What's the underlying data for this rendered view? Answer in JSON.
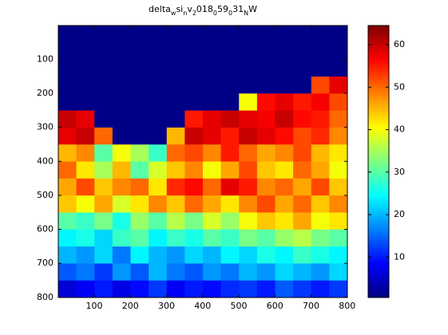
{
  "chart_data": {
    "type": "heatmap",
    "title_parts": [
      {
        "text": "delta"
      },
      {
        "text": "w",
        "sub": true
      },
      {
        "text": "si"
      },
      {
        "text": "n",
        "sub": true
      },
      {
        "text": "v"
      },
      {
        "text": "2",
        "sub": true
      },
      {
        "text": "018"
      },
      {
        "text": "0",
        "sub": true
      },
      {
        "text": "59"
      },
      {
        "text": "0",
        "sub": true
      },
      {
        "text": "31"
      },
      {
        "text": "N",
        "sub": true
      },
      {
        "text": "W"
      }
    ],
    "colormap": "jet",
    "y_reversed": true,
    "xlim": [
      0.5,
      800.5
    ],
    "ylim": [
      0.5,
      800.5
    ],
    "xticks": [
      100,
      200,
      300,
      400,
      500,
      600,
      700,
      800
    ],
    "yticks": [
      100,
      200,
      300,
      400,
      500,
      600,
      700,
      800
    ],
    "clim": [
      0.5,
      64.5
    ],
    "cticks": [
      10,
      20,
      30,
      40,
      50,
      60
    ],
    "values": [
      [
        1,
        1,
        1,
        1,
        1,
        1,
        1,
        1,
        1,
        1,
        1,
        1,
        1,
        1,
        1,
        1
      ],
      [
        1,
        1,
        1,
        1,
        1,
        1,
        1,
        1,
        1,
        1,
        1,
        1,
        1,
        1,
        1,
        1
      ],
      [
        1,
        1,
        1,
        1,
        1,
        1,
        1,
        1,
        1,
        1,
        1,
        1,
        1,
        1,
        1,
        1
      ],
      [
        1,
        1,
        1,
        1,
        1,
        1,
        1,
        1,
        1,
        1,
        1,
        1,
        1,
        1,
        52,
        58
      ],
      [
        1,
        1,
        1,
        1,
        1,
        1,
        1,
        1,
        1,
        1,
        40,
        56,
        58,
        55,
        57,
        52
      ],
      [
        60,
        58,
        1,
        1,
        1,
        1,
        1,
        55,
        58,
        60,
        58,
        57,
        60,
        56,
        55,
        50
      ],
      [
        58,
        60,
        50,
        1,
        1,
        1,
        45,
        60,
        58,
        55,
        60,
        58,
        56,
        52,
        54,
        48
      ],
      [
        45,
        48,
        30,
        40,
        35,
        28,
        50,
        52,
        48,
        55,
        50,
        46,
        48,
        52,
        45,
        42
      ],
      [
        50,
        42,
        35,
        45,
        30,
        38,
        44,
        48,
        40,
        46,
        52,
        44,
        42,
        50,
        46,
        40
      ],
      [
        46,
        52,
        44,
        48,
        50,
        42,
        54,
        56,
        50,
        58,
        55,
        48,
        50,
        46,
        52,
        44
      ],
      [
        44,
        40,
        46,
        38,
        42,
        48,
        44,
        50,
        46,
        42,
        48,
        52,
        46,
        50,
        44,
        48
      ],
      [
        30,
        28,
        32,
        26,
        34,
        30,
        36,
        32,
        38,
        34,
        40,
        44,
        42,
        46,
        40,
        42
      ],
      [
        24,
        26,
        22,
        28,
        30,
        24,
        28,
        26,
        30,
        28,
        32,
        30,
        34,
        36,
        32,
        30
      ],
      [
        20,
        18,
        22,
        16,
        24,
        20,
        18,
        22,
        20,
        24,
        22,
        26,
        24,
        28,
        26,
        24
      ],
      [
        14,
        16,
        12,
        18,
        14,
        20,
        16,
        14,
        18,
        16,
        20,
        18,
        22,
        20,
        18,
        22
      ],
      [
        6,
        8,
        10,
        7,
        9,
        12,
        8,
        10,
        9,
        11,
        12,
        10,
        14,
        12,
        10,
        12
      ]
    ]
  }
}
